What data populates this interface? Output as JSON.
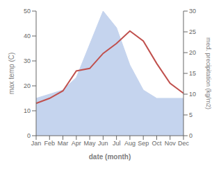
{
  "chart_data": {
    "type": "line",
    "xlabel": "date (month)",
    "ylabel": "max temp (C)",
    "y2label": "med. precipitation (kg/m2)",
    "categories": [
      "Jan",
      "Feb",
      "Mar",
      "Apr",
      "May",
      "Jun",
      "Jul",
      "Aug",
      "Sep",
      "Oct",
      "Nov",
      "Dec"
    ],
    "series": [
      {
        "type": "area",
        "axis": "y2",
        "color": "#c5d4ee",
        "values": [
          9,
          10,
          11,
          14,
          22,
          30,
          26,
          17,
          11,
          9,
          9,
          9
        ]
      },
      {
        "type": "line",
        "color": "#c0504d",
        "values": [
          13,
          15,
          18,
          26,
          27,
          33,
          37,
          42,
          38,
          29,
          21,
          17
        ]
      }
    ],
    "ylim": [
      0,
      50
    ],
    "yticks": [
      0,
      10,
      20,
      30,
      40,
      50
    ],
    "y2lim": [
      0,
      30
    ],
    "y2ticks": [
      0,
      5,
      10,
      15,
      20,
      25,
      30
    ]
  }
}
